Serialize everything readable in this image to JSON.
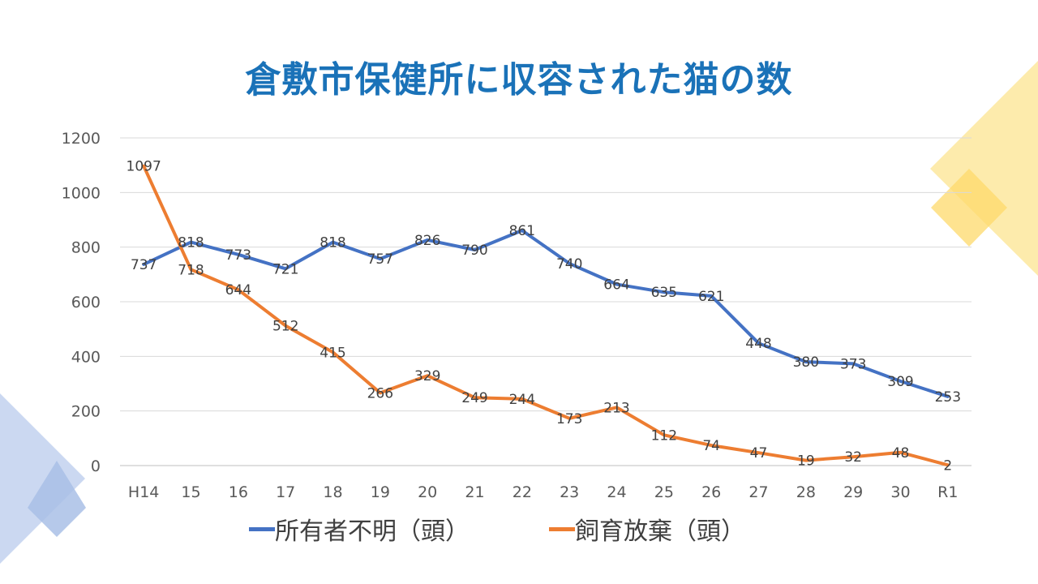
{
  "title": "倉敷市保健所に収容された猫の数",
  "colors": {
    "title": "#1a72b8",
    "series1": "#4472c4",
    "series2": "#ed7d31",
    "gridline": "#d9d9d9",
    "deco_yellow": "#fde28a",
    "deco_blue": "#b4c7e7"
  },
  "chart_data": {
    "type": "line",
    "title": "",
    "xlabel": "",
    "ylabel": "",
    "ylim": [
      0,
      1200
    ],
    "yticks": [
      0,
      200,
      400,
      600,
      800,
      1000,
      1200
    ],
    "grid": true,
    "legend_position": "bottom",
    "categories": [
      "H14",
      "15",
      "16",
      "17",
      "18",
      "19",
      "20",
      "21",
      "22",
      "23",
      "24",
      "25",
      "26",
      "27",
      "28",
      "29",
      "30",
      "R1"
    ],
    "series": [
      {
        "name": "所有者不明（頭）",
        "values": [
          737,
          818,
          773,
          721,
          818,
          757,
          826,
          790,
          861,
          740,
          664,
          635,
          621,
          448,
          380,
          373,
          309,
          253
        ]
      },
      {
        "name": "飼育放棄（頭）",
        "values": [
          1097,
          718,
          644,
          512,
          415,
          266,
          329,
          249,
          244,
          173,
          213,
          112,
          74,
          47,
          19,
          32,
          48,
          2
        ]
      }
    ]
  }
}
